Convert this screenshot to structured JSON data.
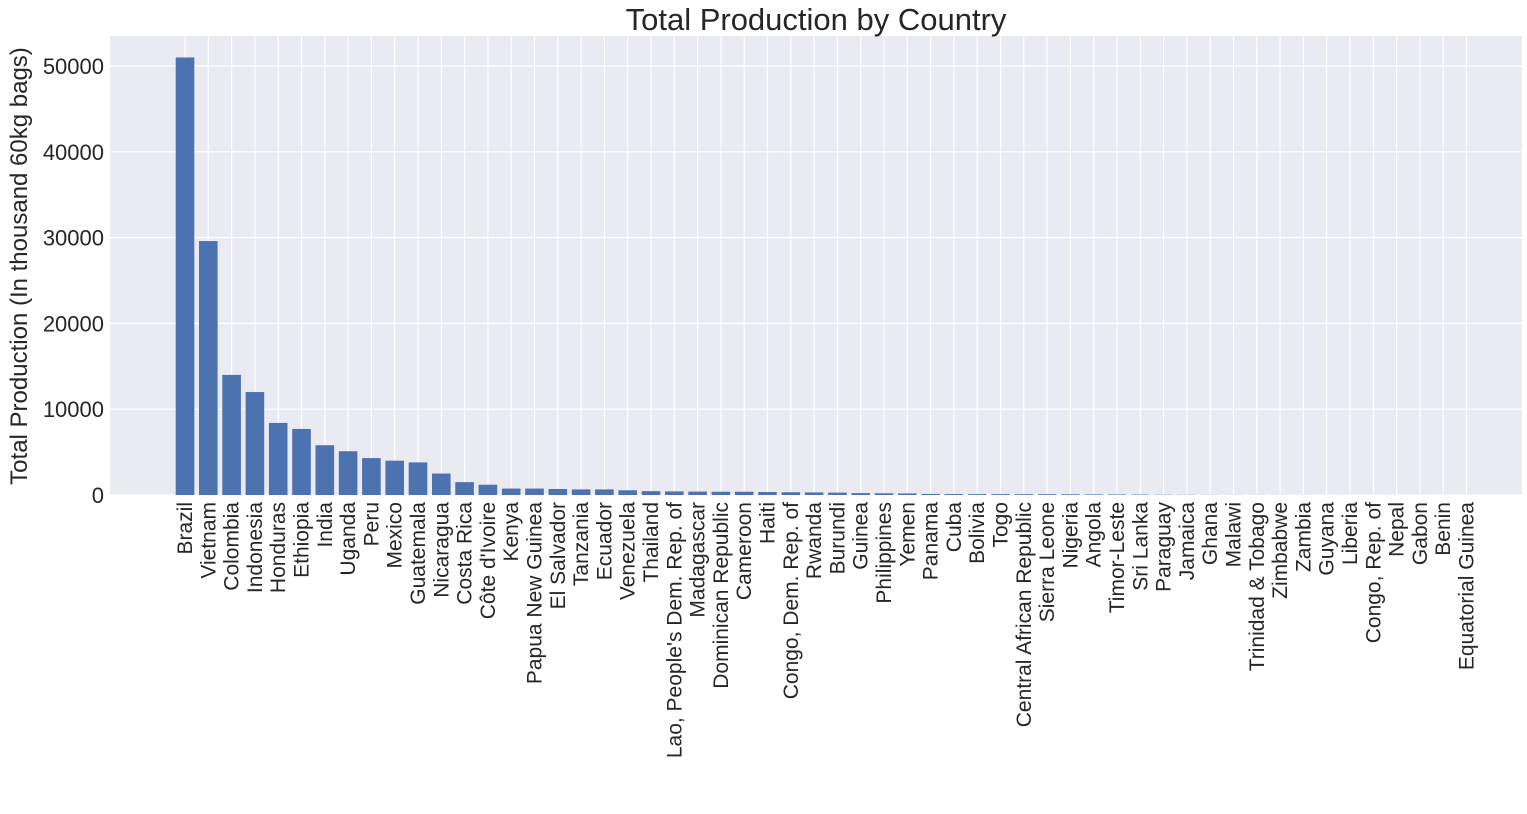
{
  "chart_data": {
    "type": "bar",
    "title": "Total Production by Country",
    "xlabel": "",
    "ylabel": "Total Production (In thousand 60kg bags)",
    "ylim": [
      0,
      53500
    ],
    "yticks": [
      0,
      10000,
      20000,
      30000,
      40000,
      50000
    ],
    "grid": true,
    "colors": {
      "bar": "#4c72b0",
      "plot_bg": "#eaeaf2",
      "grid": "#ffffff"
    },
    "categories": [
      "Brazil",
      "Vietnam",
      "Colombia",
      "Indonesia",
      "Honduras",
      "Ethiopia",
      "India",
      "Uganda",
      "Peru",
      "Mexico",
      "Guatemala",
      "Nicaragua",
      "Costa Rica",
      "Côte d'Ivoire",
      "Kenya",
      "Papua New Guinea",
      "El Salvador",
      "Tanzania",
      "Ecuador",
      "Venezuela",
      "Thailand",
      "Lao, People's Dem. Rep. of",
      "Madagascar",
      "Dominican Republic",
      "Cameroon",
      "Haiti",
      "Congo, Dem. Rep. of",
      "Rwanda",
      "Burundi",
      "Guinea",
      "Philippines",
      "Yemen",
      "Panama",
      "Cuba",
      "Bolivia",
      "Togo",
      "Central African Republic",
      "Sierra Leone",
      "Nigeria",
      "Angola",
      "Timor-Leste",
      "Sri Lanka",
      "Paraguay",
      "Jamaica",
      "Ghana",
      "Malawi",
      "Trinidad & Tobago",
      "Zimbabwe",
      "Zambia",
      "Guyana",
      "Liberia",
      "Congo, Rep. of",
      "Nepal",
      "Gabon",
      "Benin",
      "Equatorial Guinea"
    ],
    "values": [
      51000,
      29600,
      14000,
      12000,
      8400,
      7700,
      5800,
      5100,
      4300,
      4000,
      3800,
      2500,
      1500,
      1200,
      750,
      750,
      700,
      650,
      650,
      550,
      450,
      420,
      400,
      380,
      380,
      350,
      320,
      300,
      280,
      220,
      200,
      180,
      120,
      110,
      100,
      100,
      90,
      90,
      80,
      70,
      60,
      50,
      30,
      20,
      15,
      10,
      10,
      8,
      6,
      5,
      4,
      3,
      2,
      2,
      1,
      1
    ]
  }
}
